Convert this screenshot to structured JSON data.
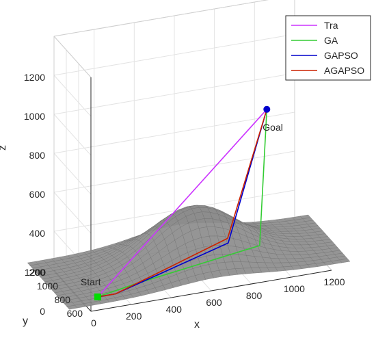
{
  "chart_data": {
    "type": "line",
    "projection": "3d",
    "title": "",
    "xlabel": "x",
    "ylabel": "y",
    "zlabel": "z",
    "x_ticks": [
      "0",
      "200",
      "400",
      "600",
      "800",
      "1000",
      "1200"
    ],
    "y_ticks": [
      "600",
      "800",
      "1000",
      "1200"
    ],
    "z_ticks": [
      "0",
      "200",
      "400",
      "600",
      "800",
      "1000",
      "1200"
    ],
    "xlim": [
      0,
      1200
    ],
    "ylim": [
      600,
      1200
    ],
    "zlim": [
      0,
      1200
    ],
    "grid": true,
    "legend_position": "top-right",
    "surface": {
      "type": "terrain-mesh",
      "color": "#8c8c8c",
      "peak_z": 310
    },
    "start": {
      "label": "Start",
      "x": 40,
      "y": 620,
      "z": 60,
      "color": "#00dd00"
    },
    "goal": {
      "label": "Goal",
      "x": 1000,
      "y": 1000,
      "z": 720,
      "color": "#0000cc"
    },
    "series": [
      {
        "name": "Tra",
        "color": "#cc33ff",
        "points": [
          [
            40,
            620,
            60
          ],
          [
            1000,
            1000,
            720
          ]
        ]
      },
      {
        "name": "GA",
        "color": "#33cc33",
        "points": [
          [
            40,
            620,
            60
          ],
          [
            230,
            640,
            85
          ],
          [
            790,
            650,
            160
          ],
          [
            860,
            660,
            165
          ],
          [
            1000,
            1000,
            720
          ]
        ]
      },
      {
        "name": "GAPSO",
        "color": "#0000cc",
        "points": [
          [
            40,
            620,
            60
          ],
          [
            130,
            620,
            60
          ],
          [
            700,
            650,
            210
          ],
          [
            1000,
            1000,
            720
          ]
        ]
      },
      {
        "name": "AGAPSO",
        "color": "#cc2200",
        "points": [
          [
            40,
            620,
            60
          ],
          [
            130,
            620,
            60
          ],
          [
            700,
            660,
            230
          ],
          [
            1000,
            1000,
            720
          ]
        ]
      }
    ]
  }
}
